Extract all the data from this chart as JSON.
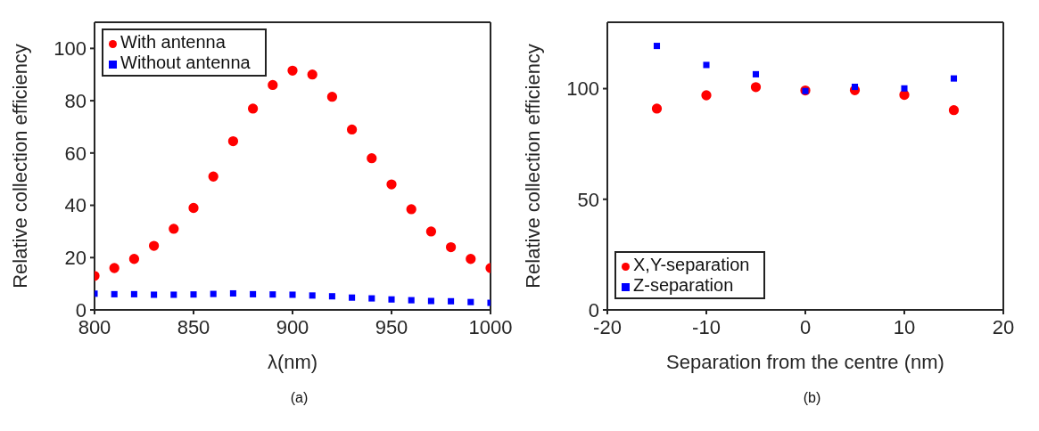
{
  "chart_data": [
    {
      "type": "scatter",
      "xlabel": "λ(nm)",
      "ylabel": "Relative collection efficiency",
      "x": [
        800,
        810,
        820,
        830,
        840,
        850,
        860,
        870,
        880,
        890,
        900,
        910,
        920,
        930,
        940,
        950,
        960,
        970,
        980,
        990,
        1000
      ],
      "xlim": [
        800,
        1000
      ],
      "xticks": [
        800,
        850,
        900,
        950,
        1000
      ],
      "ylim": [
        0,
        110
      ],
      "yticks": [
        0,
        20,
        40,
        60,
        80,
        100
      ],
      "grid": false,
      "legend": "top left",
      "annotations": [
        "(a)"
      ],
      "series": [
        {
          "name": "With antenna",
          "color": "#ff0000",
          "marker": "circle",
          "values": [
            13,
            16,
            19.5,
            24.5,
            31,
            39,
            51,
            64.5,
            77,
            86,
            91.5,
            90,
            81.5,
            69,
            58,
            48,
            38.5,
            30,
            24,
            19.5,
            16
          ]
        },
        {
          "name": "Without antenna",
          "color": "#0000ff",
          "marker": "square",
          "values": [
            6.2,
            6,
            6,
            5.8,
            5.8,
            5.9,
            6.1,
            6.3,
            6,
            5.9,
            5.8,
            5.5,
            5.2,
            4.7,
            4.4,
            4,
            3.7,
            3.4,
            3.3,
            3,
            2.7
          ]
        }
      ]
    },
    {
      "type": "scatter",
      "xlabel": "Separation from the centre (nm)",
      "ylabel": "Relative collection efficiency",
      "x": [
        -15,
        -10,
        -5,
        0,
        5,
        10,
        15
      ],
      "xlim": [
        -20,
        20
      ],
      "xticks": [
        -20,
        -10,
        0,
        10,
        20
      ],
      "ylim": [
        0,
        130
      ],
      "yticks": [
        0,
        50,
        100
      ],
      "grid": false,
      "legend": "bottom left",
      "annotations": [
        "(b)"
      ],
      "series": [
        {
          "name": "X,Y-separation",
          "color": "#ff0000",
          "marker": "circle",
          "values": [
            91,
            97,
            100.7,
            99.2,
            99.3,
            97.2,
            90.3
          ]
        },
        {
          "name": "Z-separation",
          "color": "#0000ff",
          "marker": "square",
          "values": [
            119.3,
            110.7,
            106.5,
            98.9,
            100.8,
            100.1,
            104.6
          ]
        }
      ]
    }
  ]
}
